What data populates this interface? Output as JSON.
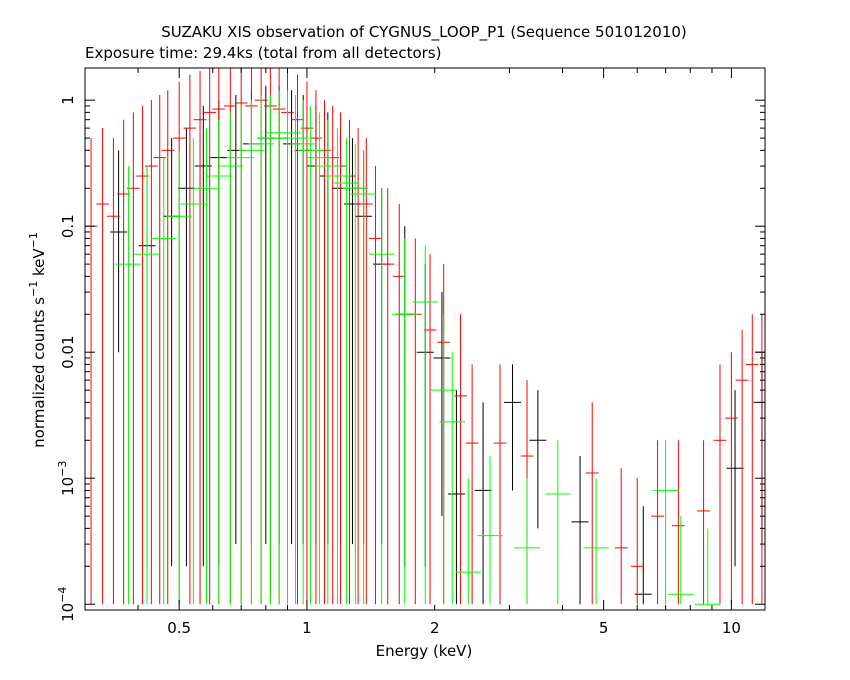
{
  "chart_data": {
    "type": "scatter",
    "title": "SUZAKU XIS observation of CYGNUS_LOOP_P1 (Sequence 501012010)",
    "subtitle": "Exposure time: 29.4ks (total from all detectors)",
    "xlabel": "Energy (keV)",
    "ylabel_main": "normalized counts s",
    "ylabel_sup1": "−1",
    "ylabel_mid": " keV",
    "ylabel_sup2": "−1",
    "x_scale": "log",
    "y_scale": "log",
    "xlim": [
      0.3,
      12
    ],
    "ylim": [
      9e-05,
      1.8
    ],
    "x_ticks": [
      {
        "value": 0.5,
        "label": "0.5"
      },
      {
        "value": 1,
        "label": "1"
      },
      {
        "value": 2,
        "label": "2"
      },
      {
        "value": 5,
        "label": "5"
      },
      {
        "value": 10,
        "label": "10"
      }
    ],
    "y_ticks": [
      {
        "value": 1,
        "label": "1",
        "exp": ""
      },
      {
        "value": 0.1,
        "label": "0.1",
        "exp": ""
      },
      {
        "value": 0.01,
        "label": "0.01",
        "exp": ""
      },
      {
        "value": 0.001,
        "label": "10",
        "exp": "−3"
      },
      {
        "value": 0.0001,
        "label": "10",
        "exp": "−4"
      }
    ],
    "grid": false,
    "series": [
      {
        "color": "#000000",
        "points": [
          [
            0.36,
            0.09,
            0.01,
            0.4
          ],
          [
            0.42,
            0.07,
            0.0002,
            0.3
          ],
          [
            0.48,
            0.12,
            0.0002,
            0.5
          ],
          [
            0.52,
            0.2,
            0.0002,
            0.6
          ],
          [
            0.57,
            0.3,
            0.0002,
            0.9
          ],
          [
            0.62,
            0.35,
            0.0002,
            1.0
          ],
          [
            0.68,
            0.4,
            0.0003,
            1.1
          ],
          [
            0.74,
            0.45,
            0.0003,
            1.2
          ],
          [
            0.8,
            0.5,
            0.0003,
            1.3
          ],
          [
            0.86,
            0.5,
            0.0003,
            1.3
          ],
          [
            0.92,
            0.45,
            0.0003,
            1.2
          ],
          [
            0.98,
            0.4,
            0.0003,
            1.1
          ],
          [
            1.05,
            0.3,
            0.0003,
            0.9
          ],
          [
            1.12,
            0.25,
            0.0003,
            0.8
          ],
          [
            1.2,
            0.2,
            0.0003,
            0.6
          ],
          [
            1.28,
            0.15,
            0.0003,
            0.5
          ],
          [
            1.36,
            0.12,
            0.0003,
            0.4
          ],
          [
            1.5,
            0.05,
            0.0003,
            0.2
          ],
          [
            1.7,
            0.02,
            0.0002,
            0.1
          ],
          [
            1.9,
            0.01,
            0.0002,
            0.05
          ],
          [
            2.08,
            0.009,
            0.0005,
            0.03
          ],
          [
            2.25,
            0.00075,
            0.0001,
            0.005
          ],
          [
            2.6,
            0.0008,
            0.0001,
            0.004
          ],
          [
            3.05,
            0.004,
            0.0008,
            0.008
          ],
          [
            3.5,
            0.002,
            0.0004,
            0.005
          ],
          [
            4.4,
            0.00045,
            0.0001,
            0.0015
          ],
          [
            6.2,
            0.00012,
            0.0001,
            0.0006
          ],
          [
            10.2,
            0.0012,
            0.0002,
            0.005
          ],
          [
            11.8,
            0.004,
            0.0003,
            0.01
          ]
        ],
        "x_halfwidths_dex": 0.02
      },
      {
        "color": "#ff0000",
        "points": [
          [
            0.31,
            0.1,
            0.0001,
            0.5
          ],
          [
            0.33,
            0.15,
            0.0001,
            0.6
          ],
          [
            0.35,
            0.12,
            0.0001,
            0.5
          ],
          [
            0.37,
            0.18,
            0.0001,
            0.7
          ],
          [
            0.39,
            0.2,
            0.0001,
            0.8
          ],
          [
            0.41,
            0.25,
            0.0001,
            0.9
          ],
          [
            0.43,
            0.3,
            0.0001,
            1.0
          ],
          [
            0.45,
            0.35,
            0.0001,
            1.1
          ],
          [
            0.47,
            0.4,
            0.0001,
            1.2
          ],
          [
            0.5,
            0.5,
            0.0001,
            1.4
          ],
          [
            0.53,
            0.6,
            0.0001,
            1.6
          ],
          [
            0.56,
            0.7,
            0.0001,
            1.7
          ],
          [
            0.59,
            0.8,
            0.0001,
            1.8
          ],
          [
            0.62,
            0.85,
            0.0001,
            1.8
          ],
          [
            0.66,
            0.9,
            0.0001,
            1.8
          ],
          [
            0.7,
            0.95,
            0.0001,
            1.8
          ],
          [
            0.74,
            0.9,
            0.0001,
            1.8
          ],
          [
            0.78,
            1.0,
            0.0001,
            1.8
          ],
          [
            0.82,
            0.9,
            0.0001,
            1.8
          ],
          [
            0.86,
            0.85,
            0.0001,
            1.8
          ],
          [
            0.9,
            0.8,
            0.0001,
            1.7
          ],
          [
            0.95,
            0.7,
            0.0001,
            1.6
          ],
          [
            1.0,
            0.6,
            0.0001,
            1.4
          ],
          [
            1.05,
            0.5,
            0.0001,
            1.2
          ],
          [
            1.1,
            0.4,
            0.0001,
            1.0
          ],
          [
            1.15,
            0.35,
            0.0001,
            0.9
          ],
          [
            1.2,
            0.3,
            0.0001,
            0.8
          ],
          [
            1.26,
            0.25,
            0.0001,
            0.7
          ],
          [
            1.32,
            0.2,
            0.0001,
            0.6
          ],
          [
            1.38,
            0.15,
            0.0001,
            0.5
          ],
          [
            1.45,
            0.08,
            0.0001,
            0.3
          ],
          [
            1.55,
            0.05,
            0.0001,
            0.2
          ],
          [
            1.65,
            0.04,
            0.0001,
            0.15
          ],
          [
            1.8,
            0.02,
            0.0001,
            0.08
          ],
          [
            1.95,
            0.015,
            0.0001,
            0.06
          ],
          [
            2.1,
            0.012,
            0.0001,
            0.05
          ],
          [
            2.3,
            0.0045,
            0.0001,
            0.02
          ],
          [
            2.45,
            0.0019,
            0.0001,
            0.008
          ],
          [
            2.85,
            0.0019,
            0.0001,
            0.008
          ],
          [
            3.3,
            0.0015,
            0.0001,
            0.006
          ],
          [
            4.7,
            0.0011,
            0.0001,
            0.004
          ],
          [
            5.5,
            0.00028,
            0.0001,
            0.0012
          ],
          [
            6.0,
            0.0002,
            0.0001,
            0.001
          ],
          [
            6.7,
            0.0005,
            0.0001,
            0.002
          ],
          [
            7.5,
            0.00042,
            0.0001,
            0.002
          ],
          [
            8.6,
            0.00055,
            0.0001,
            0.002
          ],
          [
            9.4,
            0.002,
            0.0001,
            0.008
          ],
          [
            10.0,
            0.003,
            0.0001,
            0.01
          ],
          [
            10.6,
            0.006,
            0.0001,
            0.015
          ],
          [
            11.2,
            0.008,
            0.0001,
            0.02
          ],
          [
            11.8,
            0.01,
            0.0001,
            0.02
          ]
        ],
        "x_halfwidths_dex": 0.015
      },
      {
        "color": "#00ff00",
        "points": [
          [
            0.38,
            0.05,
            0.0001,
            0.3
          ],
          [
            0.42,
            0.06,
            0.0001,
            0.3
          ],
          [
            0.46,
            0.08,
            0.0001,
            0.35
          ],
          [
            0.5,
            0.12,
            0.0001,
            0.4
          ],
          [
            0.54,
            0.15,
            0.0001,
            0.5
          ],
          [
            0.58,
            0.2,
            0.0001,
            0.6
          ],
          [
            0.62,
            0.25,
            0.0001,
            0.7
          ],
          [
            0.66,
            0.3,
            0.0001,
            0.8
          ],
          [
            0.7,
            0.35,
            0.0001,
            0.9
          ],
          [
            0.74,
            0.4,
            0.0001,
            1.0
          ],
          [
            0.78,
            0.45,
            0.0001,
            1.1
          ],
          [
            0.82,
            0.5,
            0.0001,
            1.1
          ],
          [
            0.86,
            0.55,
            0.0001,
            1.2
          ],
          [
            0.9,
            0.55,
            0.0001,
            1.2
          ],
          [
            0.94,
            0.5,
            0.0001,
            1.1
          ],
          [
            0.98,
            0.45,
            0.0001,
            1.0
          ],
          [
            1.02,
            0.4,
            0.0001,
            0.9
          ],
          [
            1.07,
            0.35,
            0.0001,
            0.8
          ],
          [
            1.12,
            0.3,
            0.0001,
            0.7
          ],
          [
            1.18,
            0.25,
            0.0001,
            0.6
          ],
          [
            1.24,
            0.22,
            0.0001,
            0.5
          ],
          [
            1.3,
            0.2,
            0.0001,
            0.45
          ],
          [
            1.36,
            0.18,
            0.0001,
            0.4
          ],
          [
            1.5,
            0.06,
            0.0001,
            0.2
          ],
          [
            1.7,
            0.02,
            0.0001,
            0.08
          ],
          [
            1.9,
            0.025,
            0.0001,
            0.07
          ],
          [
            2.1,
            0.005,
            0.0001,
            0.02
          ],
          [
            2.2,
            0.0028,
            0.0001,
            0.01
          ],
          [
            2.4,
            0.00018,
            0.0001,
            0.001
          ],
          [
            2.7,
            0.00035,
            0.0001,
            0.0015
          ],
          [
            3.3,
            0.00028,
            0.0001,
            0.001
          ],
          [
            3.9,
            0.00075,
            0.0001,
            0.002
          ],
          [
            4.8,
            0.00028,
            0.0001,
            0.001
          ],
          [
            7.0,
            0.0008,
            0.0001,
            0.002
          ],
          [
            7.6,
            0.00012,
            0.0001,
            0.0005
          ],
          [
            8.8,
            0.0001,
            0.0001,
            0.0004
          ]
        ],
        "x_halfwidths_dex": 0.03
      }
    ]
  }
}
